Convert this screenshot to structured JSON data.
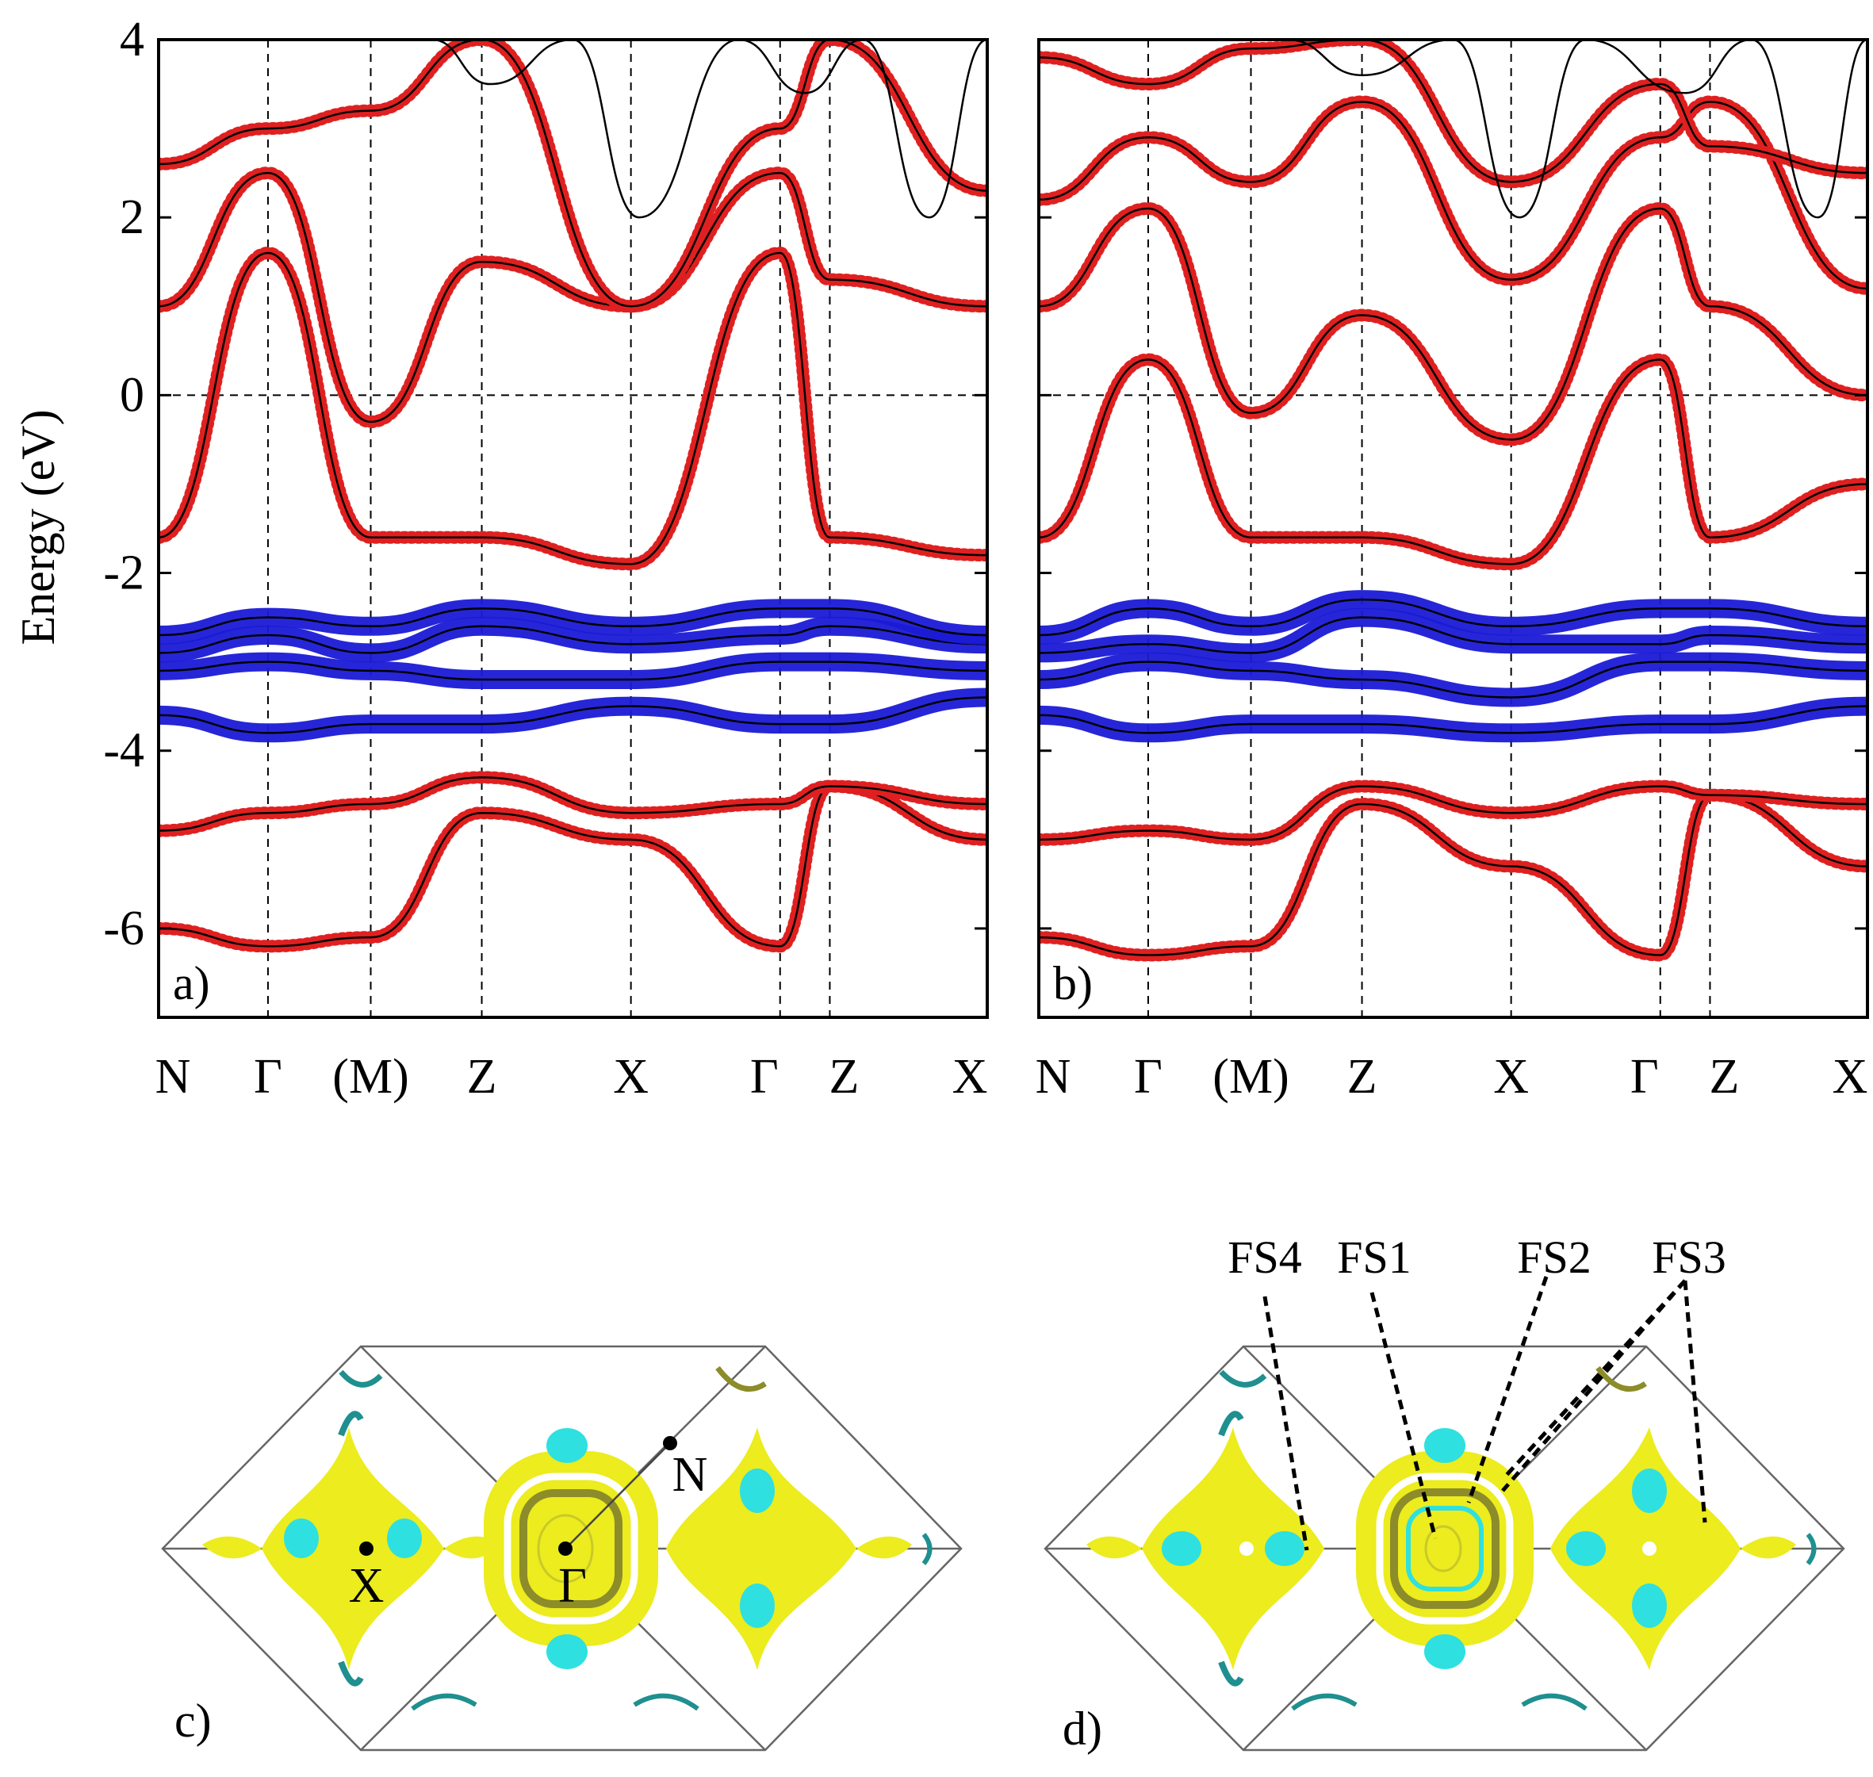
{
  "chart_data": [
    {
      "type": "line",
      "panel_label": "a)",
      "ylabel": "Energy (eV)",
      "ylim": [
        -7,
        4
      ],
      "yticks": [
        "4",
        "2",
        "0",
        "-2",
        "-4",
        "-6"
      ],
      "ytick_values": [
        4,
        2,
        0,
        -2,
        -4,
        -6
      ],
      "xlabels": [
        "N",
        "Γ",
        "(M)",
        "Z",
        "X",
        "Γ",
        "Z",
        "X"
      ],
      "kpath": [
        0,
        0.132,
        0.256,
        0.39,
        0.57,
        0.75,
        0.81,
        1.0
      ],
      "fermi_level": 0,
      "bands": [
        {
          "k": [
            0,
            0.132,
            0.256,
            0.39,
            0.57,
            0.75,
            0.81,
            1.0
          ],
          "e": [
            -6.0,
            -6.2,
            -6.1,
            -4.7,
            -5.0,
            -6.2,
            -4.4,
            -5.0
          ],
          "weight": "red"
        },
        {
          "k": [
            0,
            0.132,
            0.256,
            0.39,
            0.57,
            0.75,
            0.81,
            1.0
          ],
          "e": [
            -4.9,
            -4.7,
            -4.6,
            -4.3,
            -4.7,
            -4.6,
            -4.4,
            -4.6
          ],
          "weight": "red"
        },
        {
          "k": [
            0,
            0.132,
            0.256,
            0.39,
            0.57,
            0.75,
            0.81,
            1.0
          ],
          "e": [
            -3.6,
            -3.8,
            -3.7,
            -3.7,
            -3.5,
            -3.7,
            -3.7,
            -3.4
          ],
          "weight": "blue"
        },
        {
          "k": [
            0,
            0.132,
            0.256,
            0.39,
            0.57,
            0.75,
            0.81,
            1.0
          ],
          "e": [
            -3.1,
            -3.0,
            -3.1,
            -3.2,
            -3.2,
            -3.0,
            -3.0,
            -3.1
          ],
          "weight": "blue"
        },
        {
          "k": [
            0,
            0.132,
            0.256,
            0.39,
            0.57,
            0.75,
            0.81,
            1.0
          ],
          "e": [
            -2.9,
            -2.7,
            -2.9,
            -2.6,
            -2.8,
            -2.7,
            -2.6,
            -2.8
          ],
          "weight": "blue"
        },
        {
          "k": [
            0,
            0.132,
            0.256,
            0.39,
            0.57,
            0.75,
            0.81,
            1.0
          ],
          "e": [
            -2.7,
            -2.5,
            -2.6,
            -2.4,
            -2.6,
            -2.4,
            -2.4,
            -2.7
          ],
          "weight": "blue"
        },
        {
          "k": [
            0,
            0.132,
            0.256,
            0.39,
            0.57,
            0.75,
            0.81,
            1.0
          ],
          "e": [
            -1.6,
            1.6,
            -1.6,
            -1.6,
            -1.9,
            1.6,
            -1.6,
            -1.8
          ],
          "weight": "red"
        },
        {
          "k": [
            0,
            0.132,
            0.256,
            0.39,
            0.57,
            0.75,
            0.81,
            1.0
          ],
          "e": [
            1.0,
            2.5,
            -0.3,
            1.5,
            1.0,
            2.5,
            1.3,
            1.0
          ],
          "weight": "red"
        },
        {
          "k": [
            0,
            0.132,
            0.256,
            0.39,
            0.57,
            0.75,
            0.81,
            1.0
          ],
          "e": [
            2.6,
            3.0,
            3.2,
            4.0,
            1.0,
            3.0,
            4.0,
            2.3
          ],
          "weight": "red"
        },
        {
          "k": [
            0.33,
            0.4,
            0.5,
            0.58,
            0.7,
            0.78,
            0.85,
            0.93,
            1.0
          ],
          "e": [
            4.0,
            3.5,
            4.0,
            2.0,
            4.0,
            3.4,
            4.0,
            2.0,
            4.0
          ],
          "weight": "black"
        }
      ]
    },
    {
      "type": "line",
      "panel_label": "b)",
      "ylim": [
        -7,
        4
      ],
      "xlabels": [
        "N",
        "Γ",
        "(M)",
        "Z",
        "X",
        "Γ",
        "Z",
        "X"
      ],
      "kpath": [
        0,
        0.132,
        0.256,
        0.39,
        0.57,
        0.75,
        0.81,
        1.0
      ],
      "fermi_level": 0,
      "bands": [
        {
          "k": [
            0,
            0.132,
            0.256,
            0.39,
            0.57,
            0.75,
            0.81,
            1.0
          ],
          "e": [
            -6.1,
            -6.3,
            -6.2,
            -4.6,
            -5.3,
            -6.3,
            -4.5,
            -5.3
          ],
          "weight": "red"
        },
        {
          "k": [
            0,
            0.132,
            0.256,
            0.39,
            0.57,
            0.75,
            0.81,
            1.0
          ],
          "e": [
            -5.0,
            -4.9,
            -5.0,
            -4.4,
            -4.7,
            -4.4,
            -4.5,
            -4.6
          ],
          "weight": "red"
        },
        {
          "k": [
            0,
            0.132,
            0.256,
            0.39,
            0.57,
            0.75,
            0.81,
            1.0
          ],
          "e": [
            -3.6,
            -3.8,
            -3.7,
            -3.7,
            -3.8,
            -3.7,
            -3.7,
            -3.5
          ],
          "weight": "blue"
        },
        {
          "k": [
            0,
            0.132,
            0.256,
            0.39,
            0.57,
            0.75,
            0.81,
            1.0
          ],
          "e": [
            -3.2,
            -3.0,
            -3.1,
            -3.2,
            -3.4,
            -3.0,
            -3.0,
            -3.1
          ],
          "weight": "blue"
        },
        {
          "k": [
            0,
            0.132,
            0.256,
            0.39,
            0.57,
            0.75,
            0.81,
            1.0
          ],
          "e": [
            -2.9,
            -2.8,
            -2.9,
            -2.5,
            -2.8,
            -2.8,
            -2.7,
            -2.8
          ],
          "weight": "blue"
        },
        {
          "k": [
            0,
            0.132,
            0.256,
            0.39,
            0.57,
            0.75,
            0.81,
            1.0
          ],
          "e": [
            -2.7,
            -2.4,
            -2.6,
            -2.3,
            -2.6,
            -2.4,
            -2.4,
            -2.6
          ],
          "weight": "blue"
        },
        {
          "k": [
            0,
            0.132,
            0.256,
            0.39,
            0.57,
            0.75,
            0.81,
            1.0
          ],
          "e": [
            -1.6,
            0.4,
            -1.6,
            -1.6,
            -1.9,
            0.4,
            -1.6,
            -1.0
          ],
          "weight": "red"
        },
        {
          "k": [
            0,
            0.132,
            0.256,
            0.39,
            0.57,
            0.75,
            0.81,
            1.0
          ],
          "e": [
            1.0,
            2.1,
            -0.2,
            0.9,
            -0.5,
            2.1,
            1.0,
            0.0
          ],
          "weight": "red"
        },
        {
          "k": [
            0,
            0.132,
            0.256,
            0.39,
            0.57,
            0.75,
            0.81,
            1.0
          ],
          "e": [
            2.2,
            2.9,
            2.4,
            3.3,
            1.3,
            2.9,
            3.3,
            1.2
          ],
          "weight": "red"
        },
        {
          "k": [
            0,
            0.132,
            0.256,
            0.39,
            0.57,
            0.75,
            0.81,
            1.0
          ],
          "e": [
            3.8,
            3.5,
            3.9,
            4.0,
            2.4,
            3.5,
            2.8,
            2.5
          ],
          "weight": "red"
        },
        {
          "k": [
            0.3,
            0.39,
            0.5,
            0.58,
            0.66,
            0.78,
            0.86,
            0.94,
            1.0
          ],
          "e": [
            4.0,
            3.6,
            4.0,
            2.0,
            4.0,
            3.4,
            4.0,
            2.0,
            4.0
          ],
          "weight": "black"
        }
      ]
    },
    {
      "type": "other",
      "description_labels": {
        "panel_label": "c)",
        "points": [
          "X",
          "Γ",
          "N"
        ]
      }
    },
    {
      "type": "other",
      "description_labels": {
        "panel_label": "d)",
        "sheets": [
          "FS4",
          "FS1",
          "FS2",
          "FS3"
        ]
      }
    }
  ],
  "colors": {
    "band_line": "#000000",
    "red_weight": "#e02020",
    "blue_weight": "#1a1ad6",
    "fs_yellow": "#ecec1e",
    "fs_yellow_dark": "#8c8c2a",
    "fs_cyan": "#2ee0e0",
    "fs_teal": "#1f8f8f",
    "zone_edge": "#666666"
  }
}
